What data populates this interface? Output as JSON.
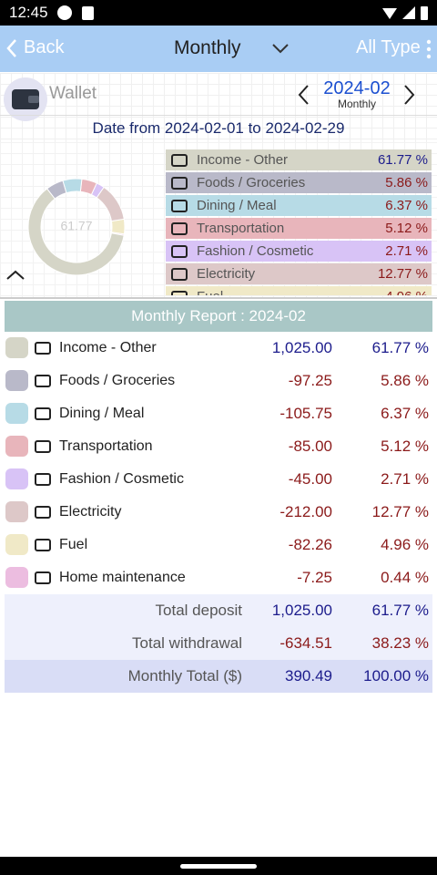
{
  "status_bar": {
    "time": "12:45"
  },
  "app_bar": {
    "back": "Back",
    "title": "Monthly",
    "filter": "All Type"
  },
  "wallet": {
    "name": "Wallet",
    "period": "2024-02",
    "period_type": "Monthly"
  },
  "date_range": "Date from 2024-02-01 to 2024-02-29",
  "donut": {
    "center_label": "61.77"
  },
  "report": {
    "title": "Monthly Report : 2024-02",
    "rows": [
      {
        "name": "Income - Other",
        "color": "#d5d5c7",
        "amount": {
          "value": 1025.0,
          "label": "1,025.00"
        },
        "percent": {
          "value": 61.77,
          "label": "61.77 %"
        }
      },
      {
        "name": "Foods / Groceries",
        "color": "#b9b9c9",
        "amount": {
          "value": -97.25,
          "label": "-97.25"
        },
        "percent": {
          "value": 5.86,
          "label": "5.86 %"
        }
      },
      {
        "name": "Dining / Meal",
        "color": "#b7dbe6",
        "amount": {
          "value": -105.75,
          "label": "-105.75"
        },
        "percent": {
          "value": 6.37,
          "label": "6.37 %"
        }
      },
      {
        "name": "Transportation",
        "color": "#e8b5bb",
        "amount": {
          "value": -85.0,
          "label": "-85.00"
        },
        "percent": {
          "value": 5.12,
          "label": "5.12 %"
        }
      },
      {
        "name": "Fashion / Cosmetic",
        "color": "#d8c3f6",
        "amount": {
          "value": -45.0,
          "label": "-45.00"
        },
        "percent": {
          "value": 2.71,
          "label": "2.71 %"
        }
      },
      {
        "name": "Electricity",
        "color": "#ddc8c8",
        "amount": {
          "value": -212.0,
          "label": "-212.00"
        },
        "percent": {
          "value": 12.77,
          "label": "12.77 %"
        }
      },
      {
        "name": "Fuel",
        "color": "#f0e9c7",
        "amount": {
          "value": -82.26,
          "label": "-82.26"
        },
        "percent": {
          "value": 4.96,
          "label": "4.96 %"
        }
      },
      {
        "name": "Home maintenance",
        "color": "#ecbde0",
        "amount": {
          "value": -7.25,
          "label": "-7.25"
        },
        "percent": {
          "value": 0.44,
          "label": "0.44 %"
        }
      }
    ],
    "totals": [
      {
        "label": "Total deposit",
        "amount": {
          "value": 1025.0,
          "label": "1,025.00"
        },
        "percent": {
          "value": 61.77,
          "label": "61.77 %"
        }
      },
      {
        "label": "Total withdrawal",
        "amount": {
          "value": -634.51,
          "label": "-634.51"
        },
        "percent": {
          "value": 38.23,
          "label": "38.23 %"
        }
      },
      {
        "label": "Monthly Total ($)",
        "amount": {
          "value": 390.49,
          "label": "390.49"
        },
        "percent": {
          "value": 100.0,
          "label": "100.00 %"
        }
      }
    ]
  }
}
